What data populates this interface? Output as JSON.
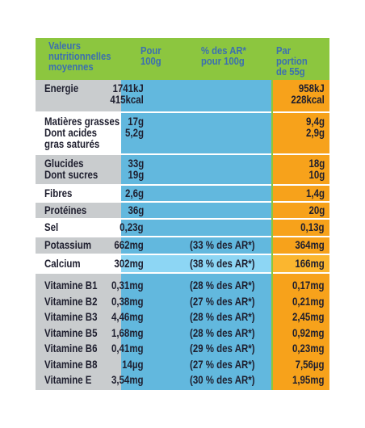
{
  "header": {
    "col1": "Valeurs\nnutritionnelles\nmoyennes",
    "col2": "Pour\n100g",
    "col3": "% des AR*\npour 100g",
    "col4": "Par portion\nde 55g"
  },
  "rows": [
    {
      "name": "Energie",
      "per100": "1741kJ\n415kcal",
      "ar": "",
      "portion": "958kJ\n228kcal"
    },
    {
      "name": "Matières grasses\nDont acides\ngras saturés",
      "per100": "17g\n5,2g",
      "ar": "",
      "portion": "9,4g\n2,9g"
    },
    {
      "name": "Glucides\nDont sucres",
      "per100": "33g\n19g",
      "ar": "",
      "portion": "18g\n10g"
    },
    {
      "name": "Fibres",
      "per100": "2,6g",
      "ar": "",
      "portion": "1,4g"
    },
    {
      "name": "Protéines",
      "per100": "36g",
      "ar": "",
      "portion": "20g"
    },
    {
      "name": "Sel",
      "per100": "0,23g",
      "ar": "",
      "portion": "0,13g"
    },
    {
      "name": "Potassium",
      "per100": "662mg",
      "ar": "(33 % des AR*)",
      "portion": "364mg"
    },
    {
      "name": "Calcium",
      "per100": "302mg",
      "ar": "(38 % des AR*)",
      "portion": "166mg"
    },
    {
      "name": "Vitamine B1\nVitamine B2\nVitamine B3\nVitamine B5\nVitamine B6\nVitamine B8\nVitamine E",
      "per100": "0,31mg\n0,38mg\n4,46mg\n1,68mg\n0,41mg\n14µg\n3,54mg",
      "ar": "(28 % des AR*)\n(27 % des AR*)\n(28 % des AR*)\n(28 % des AR*)\n(29 % des AR*)\n(27 % des AR*)\n(30 % des AR*)",
      "portion": "0,17mg\n0,21mg\n2,45mg\n0,92mg\n0,23mg\n7,56µg\n1,95mg"
    }
  ],
  "colors": {
    "green": "#8cc63f",
    "blue_dark": "#62b8de",
    "blue_light": "#8dd6f4",
    "orange_dark": "#f7a21b",
    "orange_light": "#fbb62f",
    "grey_dark": "#c9ccce",
    "grey_light": "#dcdee0",
    "white": "#ffffff",
    "header_text": "#3c6fb0",
    "body_text": "#1e1e2e"
  }
}
